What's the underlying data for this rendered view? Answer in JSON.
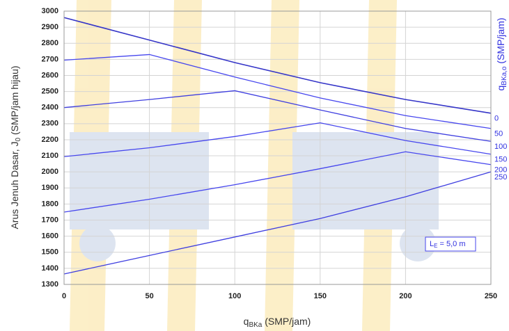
{
  "chart_data": {
    "type": "line",
    "x_label": {
      "main": "q",
      "sub": "BKa",
      "rest": " (SMP/jam)"
    },
    "y_label": {
      "main": "Arus Jenuh Dasar, J",
      "sub": "0",
      "rest": " (SMP/jam hijau)"
    },
    "legend_title": {
      "main": "q",
      "sub": "BKa,o",
      "rest": " (SMP/jam)"
    },
    "annotation": {
      "main": "L",
      "sub": "E",
      "rest": " = 5,0 m"
    },
    "x": [
      0,
      50,
      100,
      150,
      200,
      250
    ],
    "xlim": [
      0,
      250
    ],
    "xticks": [
      0,
      50,
      100,
      150,
      200,
      250
    ],
    "ylim": [
      1300,
      3000
    ],
    "yticks": [
      1300,
      1400,
      1500,
      1600,
      1700,
      1800,
      1900,
      2000,
      2100,
      2200,
      2300,
      2400,
      2500,
      2600,
      2700,
      2800,
      2900,
      3000
    ],
    "grid": true,
    "series": [
      {
        "name": "0",
        "color": "#3535c8",
        "values": [
          2960,
          2820,
          2680,
          2555,
          2450,
          2365
        ]
      },
      {
        "name": "50",
        "color": "#4646ee",
        "values": [
          2695,
          2730,
          2590,
          2460,
          2350,
          2270
        ]
      },
      {
        "name": "100",
        "color": "#3f3fe0",
        "values": [
          2400,
          2450,
          2505,
          2385,
          2270,
          2190
        ]
      },
      {
        "name": "150",
        "color": "#4646ee",
        "values": [
          2095,
          2150,
          2220,
          2305,
          2195,
          2110
        ]
      },
      {
        "name": "200",
        "color": "#4646ee",
        "values": [
          1750,
          1830,
          1920,
          2020,
          2125,
          2045
        ]
      },
      {
        "name": "250",
        "color": "#3f3fe0",
        "values": [
          1365,
          1480,
          1595,
          1710,
          1845,
          2000
        ]
      }
    ]
  }
}
